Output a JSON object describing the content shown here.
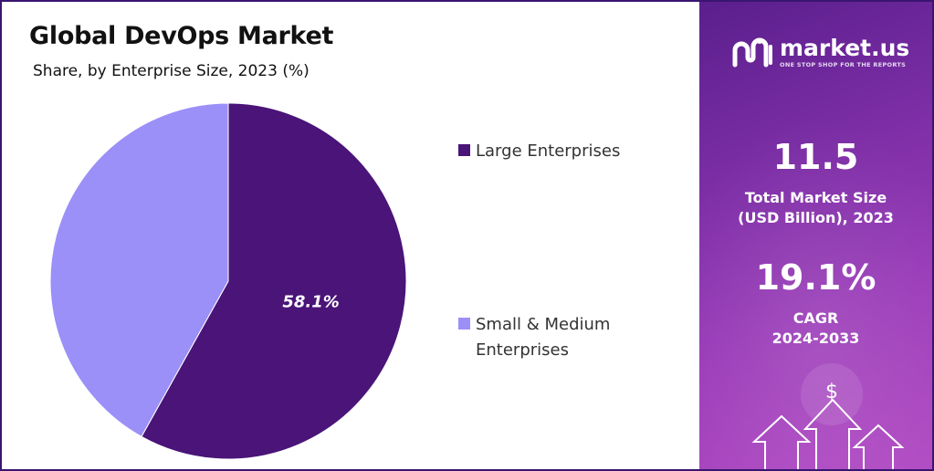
{
  "chart_data": {
    "type": "pie",
    "title": "Global DevOps Market",
    "subtitle": "Share, by Enterprise Size, 2023 (%)",
    "slices": [
      {
        "label": "Large Enterprises",
        "value": 58.1,
        "color": "#4a1478",
        "data_label": "58.1%"
      },
      {
        "label": "Small & Medium Enterprises",
        "value": 41.9,
        "color": "#9b8ff8",
        "data_label": ""
      }
    ],
    "legend": {
      "placement": "right"
    }
  },
  "legend": {
    "items": [
      {
        "label": "Large Enterprises",
        "color": "#4a1478"
      },
      {
        "label": "Small & Medium Enterprises",
        "color": "#9b8ff8"
      }
    ]
  },
  "brand": {
    "name": "market.us",
    "tagline": "ONE STOP SHOP FOR THE REPORTS",
    "logo_icon": "market-us-logo-icon"
  },
  "stats": {
    "market_size_value": "11.5",
    "market_size_label_line1": "Total Market Size",
    "market_size_label_line2": "(USD Billion), 2023",
    "cagr_value": "19.1%",
    "cagr_label_line1": "CAGR",
    "cagr_label_line2": "2024-2033"
  },
  "decor": {
    "dollar_symbol": "$",
    "icons": [
      "dollar-coin-icon",
      "up-arrow-icon"
    ]
  },
  "colors": {
    "panel_dark": "#5a1f8c",
    "panel_light": "#b24cc4",
    "frame": "#3a1570"
  }
}
